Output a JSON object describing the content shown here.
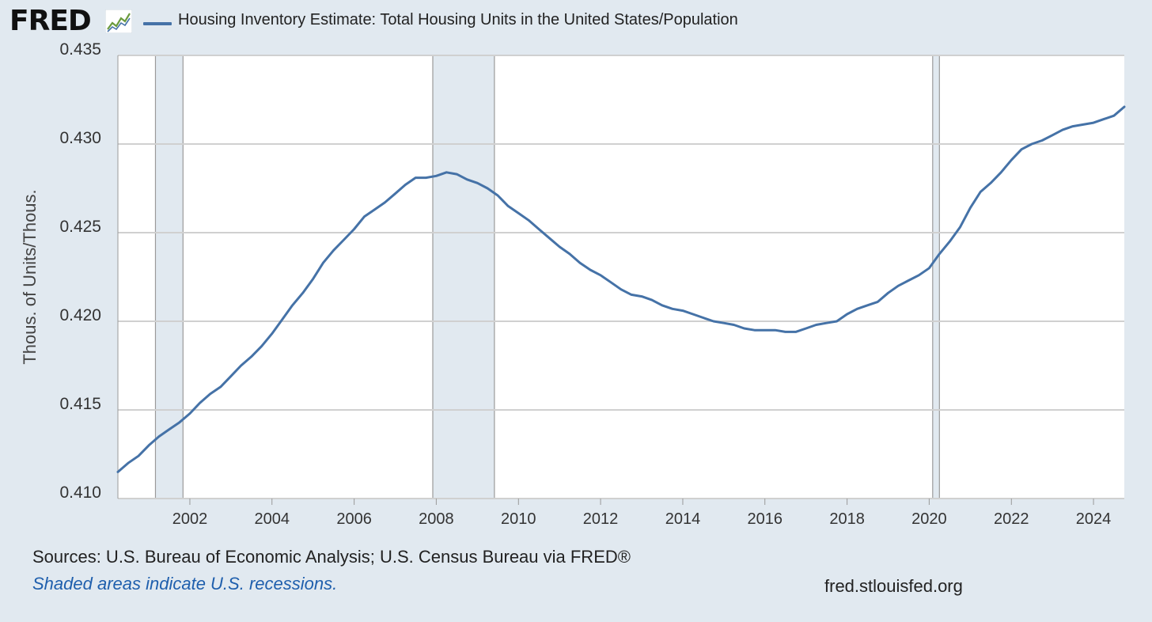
{
  "header": {
    "logo_text": "FRED",
    "logo_icon": "line-chart-icon",
    "legend_label": "Housing Inventory Estimate: Total Housing Units in the United States/Population"
  },
  "colors": {
    "background": "#e1e9f0",
    "plot_background": "#ffffff",
    "series": "#4572a7",
    "recession": "#e1e9f0",
    "gridline": "#d0d0d0",
    "note": "#1f5fad"
  },
  "chart_data": {
    "type": "line",
    "title": "",
    "xlabel": "",
    "ylabel": "Thous. of Units/Thous.",
    "xlim": [
      "2000-04-01",
      "2024-10-01"
    ],
    "ylim": [
      0.41,
      0.435
    ],
    "x_ticks": [
      "2002",
      "2004",
      "2006",
      "2008",
      "2010",
      "2012",
      "2014",
      "2016",
      "2018",
      "2020",
      "2022",
      "2024"
    ],
    "y_ticks": [
      "0.410",
      "0.415",
      "0.420",
      "0.425",
      "0.430",
      "0.435"
    ],
    "grid": "horizontal",
    "legend_position": "top",
    "recessions": [
      {
        "start": "2001-03-01",
        "end": "2001-11-01"
      },
      {
        "start": "2007-12-01",
        "end": "2009-06-01"
      },
      {
        "start": "2020-02-01",
        "end": "2020-04-01"
      }
    ],
    "series": [
      {
        "name": "Housing Inventory Estimate: Total Housing Units in the United States/Population",
        "x": [
          "2000-04-01",
          "2000-07-01",
          "2000-10-01",
          "2001-01-01",
          "2001-04-01",
          "2001-07-01",
          "2001-10-01",
          "2002-01-01",
          "2002-04-01",
          "2002-07-01",
          "2002-10-01",
          "2003-01-01",
          "2003-04-01",
          "2003-07-01",
          "2003-10-01",
          "2004-01-01",
          "2004-04-01",
          "2004-07-01",
          "2004-10-01",
          "2005-01-01",
          "2005-04-01",
          "2005-07-01",
          "2005-10-01",
          "2006-01-01",
          "2006-04-01",
          "2006-07-01",
          "2006-10-01",
          "2007-01-01",
          "2007-04-01",
          "2007-07-01",
          "2007-10-01",
          "2008-01-01",
          "2008-04-01",
          "2008-07-01",
          "2008-10-01",
          "2009-01-01",
          "2009-04-01",
          "2009-07-01",
          "2009-10-01",
          "2010-01-01",
          "2010-04-01",
          "2010-07-01",
          "2010-10-01",
          "2011-01-01",
          "2011-04-01",
          "2011-07-01",
          "2011-10-01",
          "2012-01-01",
          "2012-04-01",
          "2012-07-01",
          "2012-10-01",
          "2013-01-01",
          "2013-04-01",
          "2013-07-01",
          "2013-10-01",
          "2014-01-01",
          "2014-04-01",
          "2014-07-01",
          "2014-10-01",
          "2015-01-01",
          "2015-04-01",
          "2015-07-01",
          "2015-10-01",
          "2016-01-01",
          "2016-04-01",
          "2016-07-01",
          "2016-10-01",
          "2017-01-01",
          "2017-04-01",
          "2017-07-01",
          "2017-10-01",
          "2018-01-01",
          "2018-04-01",
          "2018-07-01",
          "2018-10-01",
          "2019-01-01",
          "2019-04-01",
          "2019-07-01",
          "2019-10-01",
          "2020-01-01",
          "2020-04-01",
          "2020-07-01",
          "2020-10-01",
          "2021-01-01",
          "2021-04-01",
          "2021-07-01",
          "2021-10-01",
          "2022-01-01",
          "2022-04-01",
          "2022-07-01",
          "2022-10-01",
          "2023-01-01",
          "2023-04-01",
          "2023-07-01",
          "2023-10-01",
          "2024-01-01",
          "2024-04-01",
          "2024-07-01",
          "2024-10-01"
        ],
        "values": [
          0.4115,
          0.412,
          0.4124,
          0.413,
          0.4135,
          0.4139,
          0.4143,
          0.4148,
          0.4154,
          0.4159,
          0.4163,
          0.4169,
          0.4175,
          0.418,
          0.4186,
          0.4193,
          0.4201,
          0.4209,
          0.4216,
          0.4224,
          0.4233,
          0.424,
          0.4246,
          0.4252,
          0.4259,
          0.4263,
          0.4267,
          0.4272,
          0.4277,
          0.4281,
          0.4281,
          0.4282,
          0.4284,
          0.4283,
          0.428,
          0.4278,
          0.4275,
          0.4271,
          0.4265,
          0.4261,
          0.4257,
          0.4252,
          0.4247,
          0.4242,
          0.4238,
          0.4233,
          0.4229,
          0.4226,
          0.4222,
          0.4218,
          0.4215,
          0.4214,
          0.4212,
          0.4209,
          0.4207,
          0.4206,
          0.4204,
          0.4202,
          0.42,
          0.4199,
          0.4198,
          0.4196,
          0.4195,
          0.4195,
          0.4195,
          0.4194,
          0.4194,
          0.4196,
          0.4198,
          0.4199,
          0.42,
          0.4204,
          0.4207,
          0.4209,
          0.4211,
          0.4216,
          0.422,
          0.4223,
          0.4226,
          0.423,
          0.4238,
          0.4245,
          0.4253,
          0.4264,
          0.4273,
          0.4278,
          0.4284,
          0.4291,
          0.4297,
          0.43,
          0.4302,
          0.4305,
          0.4308,
          0.431,
          0.4311,
          0.4312,
          0.4314,
          0.4316,
          0.4321
        ]
      }
    ]
  },
  "footer": {
    "source": "Sources: U.S. Bureau of Economic Analysis; U.S. Census Bureau via FRED®",
    "note": "Shaded areas indicate U.S. recessions.",
    "url": "fred.stlouisfed.org"
  }
}
